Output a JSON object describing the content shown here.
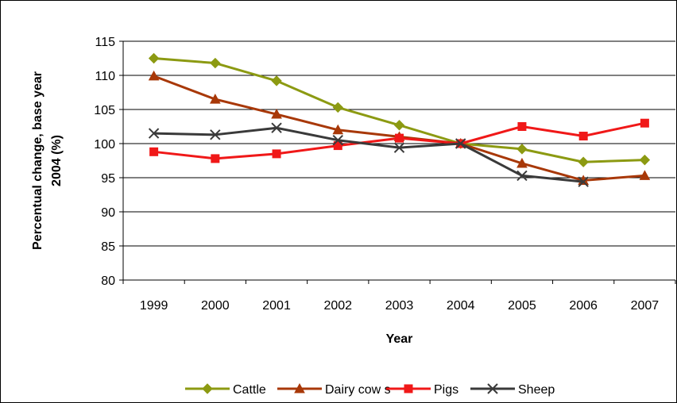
{
  "chart_data": {
    "type": "line",
    "title": "",
    "xlabel": "Year",
    "ylabel": "Percentual change, base year 2004 (%)",
    "ylabel_lines": [
      "Percentual change, base year",
      "2004 (%)"
    ],
    "categories": [
      "1999",
      "2000",
      "2001",
      "2002",
      "2003",
      "2004",
      "2005",
      "2006",
      "2007"
    ],
    "ylim": [
      80,
      115
    ],
    "yticks": [
      80,
      85,
      90,
      95,
      100,
      105,
      110,
      115
    ],
    "grid": "horizontal",
    "legend_position": "bottom",
    "series": [
      {
        "name": "Cattle",
        "color": "#8c9a12",
        "marker": "diamond",
        "values": [
          112.5,
          111.8,
          109.2,
          105.3,
          102.7,
          100.0,
          99.2,
          97.3,
          97.6
        ]
      },
      {
        "name": "Dairy cow s",
        "color": "#a83808",
        "marker": "triangle",
        "values": [
          109.9,
          106.5,
          104.3,
          102.0,
          101.0,
          100.0,
          97.1,
          94.6,
          95.3
        ]
      },
      {
        "name": "Pigs",
        "color": "#f01818",
        "marker": "square",
        "values": [
          98.8,
          97.8,
          98.5,
          99.7,
          100.8,
          100.0,
          102.5,
          101.1,
          103.0
        ]
      },
      {
        "name": "Sheep",
        "color": "#3a3a3a",
        "marker": "x",
        "values": [
          101.5,
          101.3,
          102.3,
          100.5,
          99.4,
          100.0,
          95.3,
          94.4,
          null
        ]
      }
    ]
  }
}
